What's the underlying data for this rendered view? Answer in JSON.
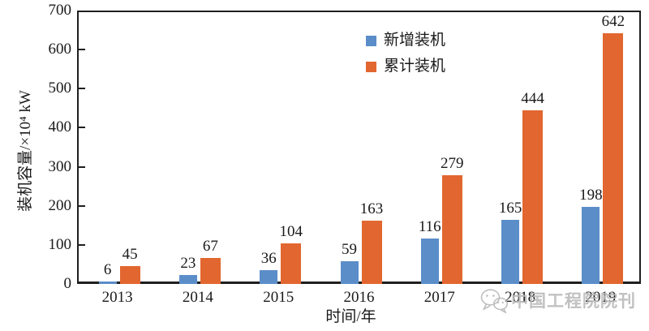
{
  "chart_data": {
    "type": "bar",
    "title": "",
    "categories": [
      "2013",
      "2014",
      "2015",
      "2016",
      "2017",
      "2018",
      "2019"
    ],
    "series": [
      {
        "name": "新增装机",
        "color": "#5b8dc9",
        "values": [
          6,
          23,
          36,
          59,
          116,
          165,
          198
        ]
      },
      {
        "name": "累计装机",
        "color": "#e2662f",
        "values": [
          45,
          67,
          104,
          163,
          279,
          444,
          642
        ]
      }
    ],
    "xlabel": "时间/年",
    "ylabel": "装机容量/×10⁴ kW",
    "ylim": [
      0,
      700
    ],
    "yticks": [
      0,
      100,
      200,
      300,
      400,
      500,
      600,
      700
    ],
    "grid": false,
    "legend_position": "inside-top-center",
    "bar_value_labels": true,
    "axis_color": "#1f1f1f",
    "text_color": "#1a1a1a"
  },
  "watermark": {
    "icon": "wechat-icon",
    "text": "中国工程院院刊",
    "color": "#c4c4c4"
  }
}
